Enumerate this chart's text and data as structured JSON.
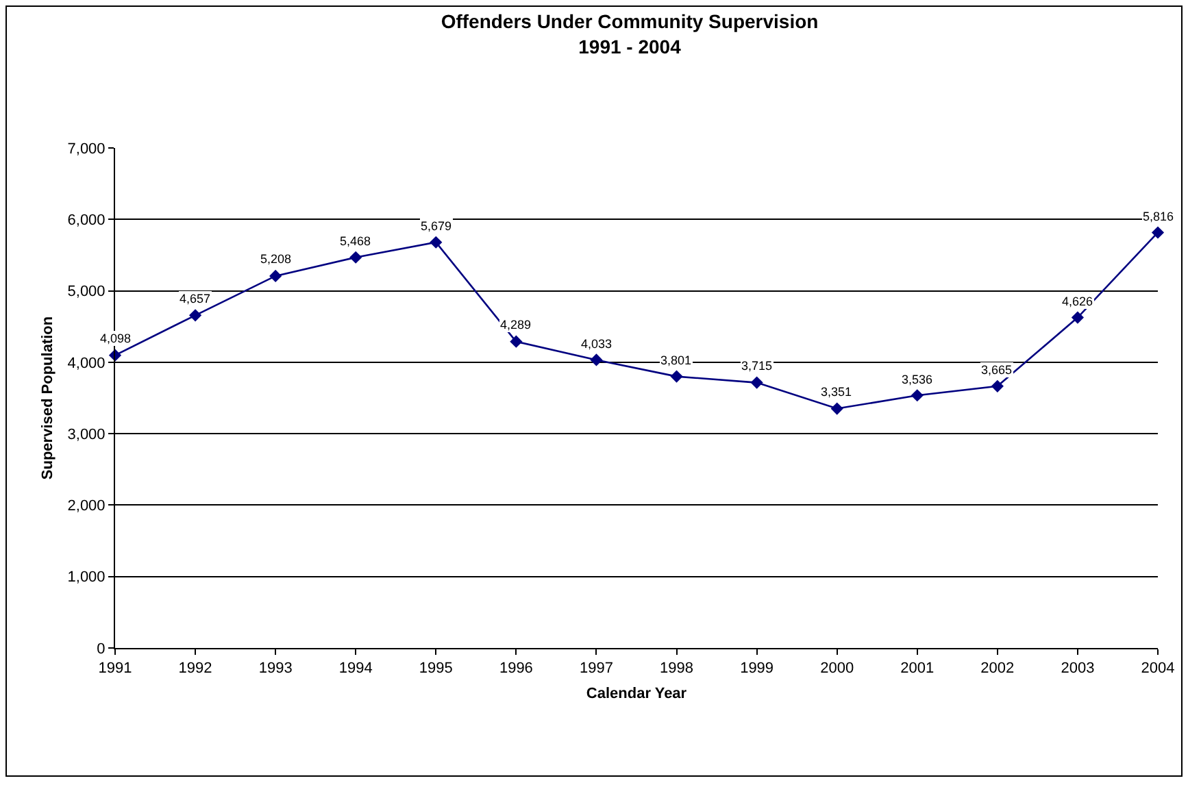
{
  "chart_data": {
    "type": "line",
    "title": "Offenders Under Community Supervision\n1991 - 2004",
    "xlabel": "Calendar Year",
    "ylabel": "Supervised Population",
    "categories": [
      "1991",
      "1992",
      "1993",
      "1994",
      "1995",
      "1996",
      "1997",
      "1998",
      "1999",
      "2000",
      "2001",
      "2002",
      "2003",
      "2004"
    ],
    "series": [
      {
        "color": "#000080",
        "values": [
          4098,
          4657,
          5208,
          5468,
          5679,
          4289,
          4033,
          3801,
          3715,
          3351,
          3536,
          3665,
          4626,
          5816
        ],
        "value_labels": [
          "4,098",
          "4,657",
          "5,208",
          "5,468",
          "5,679",
          "4,289",
          "4,033",
          "3,801",
          "3,715",
          "3,351",
          "3,536",
          "3,665",
          "4,626",
          "5,816"
        ]
      }
    ],
    "ylim": [
      0,
      7000
    ],
    "yticks": [
      0,
      {
        "value": 1000,
        "label": "1,000"
      },
      {
        "value": 2000,
        "label": "2,000"
      },
      {
        "value": 3000,
        "label": "3,000"
      },
      {
        "value": 4000,
        "label": "4,000"
      },
      {
        "value": 5000,
        "label": "5,000"
      },
      {
        "value": 6000,
        "label": "6,000"
      },
      {
        "value": 7000,
        "label": "7,000"
      }
    ],
    "grid": "y",
    "legend": false,
    "marker": "diamond",
    "line_style": "solid"
  }
}
